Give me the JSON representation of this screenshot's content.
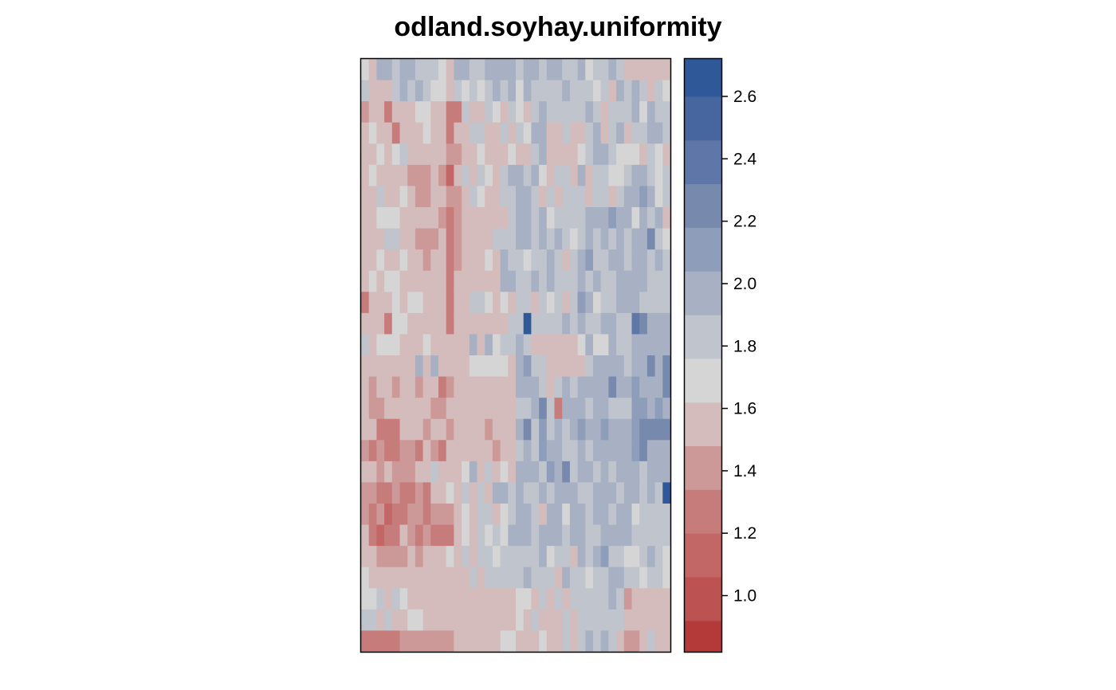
{
  "chart_data": {
    "type": "heatmap",
    "title": "odland.soyhay.uniformity",
    "xlabel": "",
    "ylabel": "",
    "n_cols": 40,
    "n_rows": 28,
    "value_range": [
      0.82,
      2.72
    ],
    "colorbar": {
      "ticks": [
        1.0,
        1.2,
        1.4,
        1.6,
        1.8,
        2.0,
        2.2,
        2.4,
        2.6
      ],
      "tick_labels": [
        "1.0",
        "1.2",
        "1.4",
        "1.6",
        "1.8",
        "2.0",
        "2.2",
        "2.4",
        "2.6"
      ],
      "levels": [
        {
          "lo": 0.82,
          "hi": 0.92,
          "color": "#b43a3a"
        },
        {
          "lo": 0.92,
          "hi": 1.06,
          "color": "#bc5252"
        },
        {
          "lo": 1.06,
          "hi": 1.2,
          "color": "#c26666"
        },
        {
          "lo": 1.2,
          "hi": 1.34,
          "color": "#c77c7c"
        },
        {
          "lo": 1.34,
          "hi": 1.48,
          "color": "#cc9898"
        },
        {
          "lo": 1.48,
          "hi": 1.62,
          "color": "#d5bcbc"
        },
        {
          "lo": 1.62,
          "hi": 1.76,
          "color": "#d5d5d5"
        },
        {
          "lo": 1.76,
          "hi": 1.9,
          "color": "#c0c4cc"
        },
        {
          "lo": 1.9,
          "hi": 2.04,
          "color": "#a8b1c4"
        },
        {
          "lo": 2.04,
          "hi": 2.18,
          "color": "#8e9dba"
        },
        {
          "lo": 2.18,
          "hi": 2.32,
          "color": "#7889ae"
        },
        {
          "lo": 2.32,
          "hi": 2.46,
          "color": "#5f77a8"
        },
        {
          "lo": 2.46,
          "hi": 2.6,
          "color": "#4766a0"
        },
        {
          "lo": 2.6,
          "hi": 2.72,
          "color": "#2f5899"
        }
      ]
    },
    "values": [
      [
        1.7,
        1.6,
        1.9,
        2.0,
        1.8,
        1.9,
        1.9,
        1.8,
        1.8,
        1.8,
        1.7,
        1.6,
        1.9,
        1.9,
        1.8,
        1.8,
        2.0,
        1.9,
        2.0,
        1.9,
        1.8,
        1.9,
        2.0,
        1.8,
        1.9,
        2.0,
        1.8,
        1.8,
        1.9,
        1.7,
        1.8,
        1.8,
        1.9,
        1.8,
        1.6,
        1.6,
        1.6,
        1.6,
        1.6,
        1.6
      ],
      [
        1.8,
        1.6,
        1.5,
        1.6,
        1.8,
        1.9,
        1.8,
        2.0,
        1.8,
        1.7,
        1.7,
        1.5,
        1.8,
        1.7,
        1.8,
        1.7,
        1.8,
        1.9,
        1.8,
        1.9,
        1.7,
        1.9,
        1.8,
        1.8,
        1.8,
        1.8,
        1.9,
        1.8,
        1.8,
        1.8,
        1.7,
        1.8,
        1.6,
        1.9,
        1.8,
        1.9,
        1.8,
        1.6,
        1.8,
        1.7
      ],
      [
        1.4,
        1.5,
        1.6,
        1.3,
        1.6,
        1.6,
        1.6,
        1.7,
        1.7,
        1.6,
        1.6,
        1.2,
        1.3,
        1.8,
        1.5,
        1.6,
        1.8,
        1.7,
        1.5,
        1.8,
        1.7,
        1.6,
        1.8,
        1.9,
        1.8,
        1.8,
        1.8,
        1.8,
        1.8,
        1.9,
        1.8,
        1.6,
        1.8,
        1.8,
        1.8,
        1.9,
        1.7,
        1.9,
        1.8,
        1.8
      ],
      [
        1.6,
        1.7,
        1.5,
        1.6,
        1.3,
        1.6,
        1.6,
        1.6,
        1.7,
        1.5,
        1.6,
        1.3,
        1.5,
        1.6,
        1.8,
        1.8,
        1.6,
        1.6,
        1.8,
        1.6,
        1.8,
        1.7,
        1.9,
        1.9,
        1.6,
        1.6,
        1.8,
        1.6,
        1.6,
        1.8,
        1.9,
        1.6,
        1.8,
        1.9,
        1.6,
        1.8,
        1.8,
        1.9,
        1.9,
        1.8
      ],
      [
        1.6,
        1.6,
        1.7,
        1.6,
        1.7,
        1.8,
        1.5,
        1.5,
        1.6,
        1.6,
        1.5,
        1.4,
        1.4,
        1.6,
        1.6,
        1.7,
        1.6,
        1.5,
        1.6,
        1.7,
        1.6,
        1.6,
        1.8,
        1.9,
        1.6,
        1.6,
        1.6,
        1.6,
        1.7,
        1.8,
        1.9,
        1.9,
        1.8,
        1.7,
        1.7,
        1.7,
        1.6,
        1.8,
        1.7,
        1.6
      ],
      [
        1.6,
        1.7,
        1.6,
        1.5,
        1.6,
        1.6,
        1.4,
        1.4,
        1.4,
        1.5,
        1.4,
        1.1,
        1.5,
        1.8,
        1.6,
        1.8,
        1.7,
        1.6,
        1.8,
        1.9,
        2.0,
        1.8,
        1.9,
        1.7,
        1.6,
        1.8,
        1.8,
        1.6,
        1.9,
        1.6,
        1.8,
        1.8,
        1.7,
        1.7,
        1.8,
        1.9,
        1.9,
        1.8,
        1.7,
        1.8
      ],
      [
        1.6,
        1.5,
        1.8,
        1.6,
        1.6,
        1.7,
        1.5,
        1.4,
        1.4,
        1.5,
        1.6,
        1.4,
        1.4,
        1.6,
        1.8,
        1.7,
        1.6,
        1.5,
        1.8,
        1.8,
        1.9,
        2.0,
        1.8,
        1.6,
        1.8,
        1.6,
        1.8,
        1.8,
        1.8,
        1.6,
        1.8,
        1.8,
        1.6,
        1.8,
        1.9,
        1.9,
        2.1,
        1.9,
        1.7,
        1.8
      ],
      [
        1.6,
        1.5,
        1.7,
        1.7,
        1.7,
        1.6,
        1.5,
        1.5,
        1.5,
        1.5,
        1.4,
        1.3,
        1.4,
        1.6,
        1.5,
        1.5,
        1.5,
        1.6,
        1.6,
        1.8,
        1.9,
        1.9,
        1.8,
        1.9,
        1.7,
        1.8,
        1.8,
        1.8,
        1.8,
        2.0,
        1.9,
        1.9,
        2.1,
        2.0,
        2.0,
        1.7,
        2.0,
        1.8,
        1.9,
        1.6
      ],
      [
        1.6,
        1.5,
        1.6,
        1.8,
        1.8,
        1.6,
        1.6,
        1.4,
        1.4,
        1.4,
        1.5,
        1.3,
        1.4,
        1.6,
        1.6,
        1.6,
        1.6,
        1.8,
        1.8,
        1.8,
        1.9,
        1.9,
        1.8,
        1.9,
        1.8,
        1.9,
        1.8,
        1.7,
        1.8,
        2.0,
        1.8,
        1.9,
        1.8,
        2.0,
        1.8,
        1.9,
        2.0,
        2.2,
        1.8,
        1.7
      ],
      [
        1.6,
        1.6,
        1.7,
        1.6,
        1.6,
        1.7,
        1.6,
        1.5,
        1.4,
        1.5,
        1.6,
        1.2,
        1.4,
        1.5,
        1.5,
        1.6,
        1.7,
        1.6,
        1.9,
        1.8,
        1.8,
        1.7,
        1.8,
        1.8,
        1.9,
        1.8,
        1.6,
        1.8,
        1.9,
        2.1,
        1.8,
        1.8,
        2.0,
        1.9,
        1.8,
        2.0,
        1.9,
        1.8,
        1.9,
        1.8
      ],
      [
        1.6,
        1.7,
        1.6,
        1.7,
        1.7,
        1.5,
        1.6,
        1.6,
        1.6,
        1.5,
        1.6,
        1.3,
        1.6,
        1.5,
        1.5,
        1.6,
        1.5,
        1.6,
        1.9,
        1.9,
        1.8,
        1.8,
        1.9,
        1.8,
        1.9,
        1.8,
        1.8,
        1.8,
        1.9,
        1.8,
        1.9,
        1.8,
        1.8,
        1.9,
        1.9,
        2.0,
        2.0,
        1.8,
        1.8,
        1.8
      ],
      [
        1.3,
        1.6,
        1.5,
        1.6,
        1.7,
        1.6,
        1.7,
        1.7,
        1.5,
        1.6,
        1.6,
        1.3,
        1.6,
        1.6,
        1.8,
        1.8,
        1.7,
        1.5,
        1.7,
        1.6,
        1.8,
        1.8,
        1.6,
        1.8,
        1.7,
        1.8,
        1.6,
        1.8,
        2.1,
        1.9,
        1.7,
        1.8,
        1.8,
        1.9,
        1.9,
        1.9,
        1.8,
        1.8,
        1.8,
        1.8
      ],
      [
        1.5,
        1.6,
        1.6,
        1.3,
        1.7,
        1.7,
        1.6,
        1.5,
        1.6,
        1.5,
        1.6,
        1.3,
        1.5,
        1.6,
        1.5,
        1.5,
        1.6,
        1.6,
        1.6,
        1.8,
        1.8,
        2.7,
        1.8,
        1.8,
        1.8,
        1.8,
        1.9,
        1.8,
        2.0,
        1.8,
        1.8,
        1.9,
        1.9,
        1.8,
        1.8,
        2.4,
        2.3,
        1.9,
        1.9,
        1.9
      ],
      [
        1.8,
        1.6,
        1.7,
        1.7,
        1.7,
        1.6,
        1.6,
        1.6,
        1.7,
        1.6,
        1.6,
        1.6,
        1.6,
        1.6,
        1.9,
        1.6,
        2.0,
        1.7,
        1.8,
        1.8,
        2.0,
        1.8,
        1.6,
        1.6,
        1.6,
        1.6,
        1.6,
        1.6,
        1.7,
        1.9,
        1.7,
        1.7,
        1.9,
        1.8,
        1.8,
        1.9,
        2.0,
        1.9,
        2.0,
        1.9
      ],
      [
        1.6,
        1.5,
        1.6,
        1.6,
        1.6,
        1.6,
        1.6,
        1.9,
        1.6,
        1.9,
        1.6,
        1.5,
        1.6,
        1.6,
        1.7,
        1.7,
        1.7,
        1.7,
        1.7,
        1.6,
        2.0,
        2.1,
        1.8,
        1.8,
        1.6,
        1.6,
        1.6,
        1.6,
        1.6,
        1.8,
        1.9,
        1.9,
        1.9,
        2.0,
        1.8,
        2.0,
        2.0,
        2.2,
        2.0,
        2.3
      ],
      [
        1.5,
        1.4,
        1.5,
        1.5,
        1.4,
        1.5,
        1.5,
        1.4,
        1.5,
        1.5,
        1.3,
        1.4,
        1.5,
        1.5,
        1.6,
        1.5,
        1.5,
        1.5,
        1.5,
        1.5,
        1.9,
        1.9,
        2.0,
        1.8,
        1.5,
        1.8,
        1.9,
        1.8,
        1.9,
        1.9,
        1.9,
        1.9,
        2.2,
        1.9,
        2.0,
        2.1,
        1.9,
        2.0,
        2.0,
        2.3
      ],
      [
        1.6,
        1.4,
        1.4,
        1.5,
        1.5,
        1.6,
        1.6,
        1.5,
        1.6,
        1.4,
        1.4,
        1.6,
        1.6,
        1.6,
        1.6,
        1.6,
        1.6,
        1.6,
        1.6,
        1.6,
        1.8,
        1.8,
        1.9,
        2.2,
        1.8,
        1.3,
        1.9,
        1.9,
        1.9,
        1.8,
        1.9,
        1.9,
        1.8,
        1.8,
        1.8,
        2.1,
        2.1,
        2.0,
        2.1,
        2.0
      ],
      [
        1.6,
        1.5,
        1.3,
        1.3,
        1.3,
        1.5,
        1.5,
        1.5,
        1.4,
        1.6,
        1.5,
        1.4,
        1.5,
        1.5,
        1.5,
        1.5,
        1.4,
        1.5,
        1.5,
        1.5,
        2.0,
        2.2,
        1.8,
        2.1,
        1.8,
        1.9,
        1.8,
        1.9,
        2.1,
        1.9,
        1.9,
        2.1,
        1.9,
        1.9,
        1.9,
        2.1,
        2.2,
        2.3,
        2.2,
        2.3
      ],
      [
        1.4,
        1.3,
        1.4,
        1.3,
        1.3,
        1.4,
        1.4,
        1.3,
        1.6,
        1.4,
        1.3,
        1.5,
        1.5,
        1.5,
        1.5,
        1.6,
        1.5,
        1.4,
        1.5,
        1.6,
        1.8,
        2.0,
        1.8,
        2.1,
        2.0,
        1.9,
        1.8,
        1.8,
        1.9,
        1.8,
        1.9,
        1.9,
        1.9,
        2.0,
        2.0,
        2.1,
        2.2,
        2.0,
        2.0,
        2.0
      ],
      [
        1.5,
        1.6,
        1.4,
        1.6,
        1.4,
        1.4,
        1.4,
        1.5,
        1.6,
        1.8,
        1.6,
        1.5,
        1.6,
        1.7,
        1.9,
        1.5,
        1.8,
        1.5,
        1.7,
        1.5,
        2.0,
        1.9,
        2.0,
        1.8,
        2.1,
        1.9,
        2.2,
        1.8,
        1.9,
        1.9,
        1.8,
        1.9,
        1.8,
        1.9,
        2.0,
        2.0,
        1.8,
        1.9,
        2.0,
        1.9
      ],
      [
        1.4,
        1.4,
        1.3,
        1.3,
        1.4,
        1.3,
        1.3,
        1.4,
        1.3,
        1.5,
        1.5,
        1.7,
        1.5,
        1.8,
        1.5,
        1.8,
        1.5,
        1.9,
        1.9,
        1.8,
        1.9,
        1.8,
        1.8,
        1.9,
        1.8,
        1.9,
        1.9,
        1.9,
        1.8,
        1.8,
        1.9,
        1.9,
        1.9,
        1.8,
        2.0,
        1.9,
        1.8,
        2.0,
        1.8,
        2.6
      ],
      [
        1.4,
        1.2,
        1.4,
        1.1,
        1.3,
        1.3,
        1.4,
        1.4,
        1.3,
        1.4,
        1.4,
        1.4,
        1.5,
        1.7,
        1.6,
        1.8,
        1.8,
        1.6,
        1.7,
        1.8,
        2.0,
        2.0,
        1.8,
        1.6,
        1.9,
        1.9,
        1.7,
        1.9,
        1.9,
        1.8,
        1.9,
        1.9,
        1.8,
        1.9,
        1.9,
        1.7,
        1.8,
        1.8,
        1.8,
        1.8
      ],
      [
        1.6,
        1.3,
        1.1,
        1.3,
        1.3,
        1.5,
        1.4,
        1.3,
        1.4,
        1.3,
        1.3,
        1.3,
        1.5,
        1.7,
        1.6,
        1.8,
        1.7,
        1.8,
        1.7,
        1.9,
        1.9,
        1.9,
        1.8,
        1.9,
        1.9,
        1.9,
        1.8,
        1.9,
        1.9,
        1.8,
        1.8,
        1.9,
        1.9,
        1.9,
        2.0,
        1.8,
        1.8,
        1.8,
        1.8,
        1.8
      ],
      [
        1.6,
        1.5,
        1.4,
        1.4,
        1.4,
        1.4,
        1.5,
        1.4,
        1.6,
        1.5,
        1.6,
        1.7,
        1.5,
        1.8,
        1.6,
        1.8,
        1.8,
        1.7,
        1.8,
        1.8,
        1.8,
        1.8,
        1.8,
        1.9,
        1.7,
        1.8,
        1.8,
        1.6,
        1.9,
        1.8,
        1.9,
        2.1,
        1.8,
        1.8,
        1.7,
        1.7,
        1.8,
        1.9,
        1.8,
        1.7
      ],
      [
        1.7,
        1.6,
        1.5,
        1.5,
        1.5,
        1.5,
        1.6,
        1.5,
        1.6,
        1.6,
        1.5,
        1.5,
        1.5,
        1.6,
        1.8,
        1.6,
        1.8,
        1.8,
        1.8,
        1.8,
        1.8,
        1.9,
        1.8,
        1.8,
        1.8,
        1.6,
        1.9,
        1.8,
        1.8,
        1.7,
        1.8,
        1.8,
        1.9,
        1.9,
        1.8,
        1.8,
        1.7,
        1.8,
        1.8,
        1.7
      ],
      [
        1.7,
        1.7,
        1.8,
        1.6,
        1.8,
        1.7,
        1.6,
        1.6,
        1.6,
        1.6,
        1.6,
        1.5,
        1.6,
        1.6,
        1.5,
        1.5,
        1.6,
        1.6,
        1.5,
        1.6,
        1.7,
        1.7,
        1.6,
        1.8,
        1.6,
        1.8,
        1.6,
        1.8,
        1.8,
        1.8,
        1.8,
        1.8,
        1.9,
        1.8,
        1.4,
        1.5,
        1.6,
        1.5,
        1.6,
        1.5
      ],
      [
        1.8,
        1.8,
        1.5,
        1.8,
        1.6,
        1.6,
        1.7,
        1.7,
        1.6,
        1.6,
        1.5,
        1.6,
        1.5,
        1.6,
        1.5,
        1.5,
        1.6,
        1.5,
        1.6,
        1.5,
        1.7,
        1.6,
        1.8,
        1.6,
        1.6,
        1.6,
        1.8,
        1.6,
        1.8,
        1.8,
        1.8,
        1.8,
        1.8,
        1.8,
        1.6,
        1.5,
        1.6,
        1.5,
        1.6,
        1.5
      ],
      [
        1.3,
        1.3,
        1.3,
        1.2,
        1.3,
        1.4,
        1.4,
        1.4,
        1.4,
        1.4,
        1.4,
        1.4,
        1.6,
        1.5,
        1.6,
        1.5,
        1.5,
        1.6,
        1.7,
        1.7,
        1.6,
        1.5,
        1.6,
        1.7,
        1.5,
        1.6,
        1.8,
        1.5,
        1.8,
        1.9,
        1.8,
        1.9,
        1.8,
        1.6,
        1.4,
        1.4,
        1.6,
        1.8,
        1.5,
        1.6
      ]
    ]
  }
}
